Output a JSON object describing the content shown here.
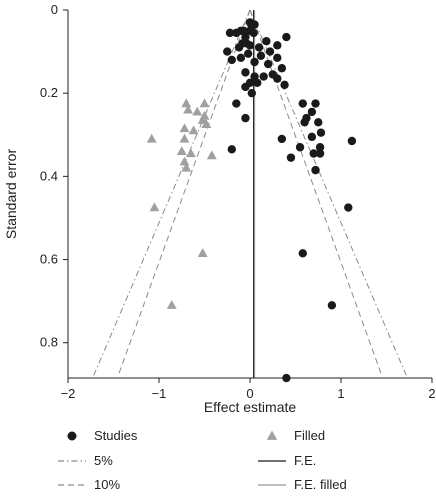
{
  "chart_data": {
    "type": "scatter",
    "subtype": "funnel-plot",
    "xlabel": "Effect estimate",
    "ylabel": "Standard error",
    "xlim": [
      -2,
      2
    ],
    "ylim": [
      0,
      0.88
    ],
    "y_reversed": true,
    "x_ticks": [
      "−2",
      "−1",
      "0",
      "1",
      "2"
    ],
    "y_ticks": [
      "0",
      "0.2",
      "0.4",
      "0.6",
      "0.8"
    ],
    "grid": false,
    "legend_position": "bottom",
    "fixed_effect_estimate": 0.04,
    "fixed_effect_filled_estimate": 0.05,
    "series": [
      {
        "name": "Studies",
        "marker": "circle",
        "color": "#1a1a1a",
        "points": [
          [
            0.0,
            0.03
          ],
          [
            0.05,
            0.035
          ],
          [
            0.02,
            0.04
          ],
          [
            0.0,
            0.05
          ],
          [
            -0.07,
            0.05
          ],
          [
            0.04,
            0.055
          ],
          [
            -0.1,
            0.05
          ],
          [
            -0.15,
            0.055
          ],
          [
            -0.22,
            0.055
          ],
          [
            -0.05,
            0.065
          ],
          [
            0.4,
            0.065
          ],
          [
            0.18,
            0.075
          ],
          [
            -0.08,
            0.08
          ],
          [
            -0.04,
            0.08
          ],
          [
            0.0,
            0.085
          ],
          [
            0.3,
            0.085
          ],
          [
            -0.12,
            0.09
          ],
          [
            0.1,
            0.09
          ],
          [
            -0.25,
            0.1
          ],
          [
            0.22,
            0.1
          ],
          [
            -0.02,
            0.105
          ],
          [
            0.12,
            0.11
          ],
          [
            -0.1,
            0.115
          ],
          [
            0.3,
            0.115
          ],
          [
            -0.2,
            0.12
          ],
          [
            0.05,
            0.125
          ],
          [
            0.2,
            0.13
          ],
          [
            0.35,
            0.14
          ],
          [
            -0.05,
            0.15
          ],
          [
            0.25,
            0.155
          ],
          [
            0.05,
            0.16
          ],
          [
            0.15,
            0.16
          ],
          [
            0.3,
            0.165
          ],
          [
            0.0,
            0.175
          ],
          [
            0.08,
            0.175
          ],
          [
            0.38,
            0.18
          ],
          [
            -0.05,
            0.185
          ],
          [
            0.02,
            0.2
          ],
          [
            -0.15,
            0.225
          ],
          [
            0.58,
            0.225
          ],
          [
            0.72,
            0.225
          ],
          [
            0.68,
            0.245
          ],
          [
            0.62,
            0.26
          ],
          [
            0.6,
            0.27
          ],
          [
            0.75,
            0.27
          ],
          [
            -0.05,
            0.26
          ],
          [
            0.78,
            0.295
          ],
          [
            0.68,
            0.305
          ],
          [
            0.35,
            0.31
          ],
          [
            1.12,
            0.315
          ],
          [
            0.55,
            0.33
          ],
          [
            0.77,
            0.33
          ],
          [
            -0.2,
            0.335
          ],
          [
            0.7,
            0.345
          ],
          [
            0.77,
            0.345
          ],
          [
            0.45,
            0.355
          ],
          [
            0.72,
            0.385
          ],
          [
            1.08,
            0.475
          ],
          [
            0.58,
            0.585
          ],
          [
            0.9,
            0.71
          ],
          [
            0.4,
            0.885
          ]
        ]
      },
      {
        "name": "Filled",
        "marker": "triangle",
        "color": "#a0a0a0",
        "points": [
          [
            -0.7,
            0.225
          ],
          [
            -0.5,
            0.225
          ],
          [
            -0.68,
            0.24
          ],
          [
            -0.58,
            0.245
          ],
          [
            -0.5,
            0.255
          ],
          [
            -0.52,
            0.265
          ],
          [
            -0.48,
            0.275
          ],
          [
            -0.72,
            0.285
          ],
          [
            -0.62,
            0.29
          ],
          [
            -1.08,
            0.31
          ],
          [
            -0.72,
            0.31
          ],
          [
            -0.75,
            0.34
          ],
          [
            -0.65,
            0.345
          ],
          [
            -0.42,
            0.35
          ],
          [
            -0.72,
            0.365
          ],
          [
            -0.7,
            0.38
          ],
          [
            -1.05,
            0.475
          ],
          [
            -0.52,
            0.585
          ],
          [
            -0.86,
            0.71
          ]
        ]
      }
    ],
    "reference_lines": [
      {
        "name": "5%",
        "style": "dash-dot",
        "color": "#8a8a8a",
        "center": 0.0,
        "x_at_bottom": [
          -1.72,
          1.72
        ],
        "y_bottom": 0.88
      },
      {
        "name": "10%",
        "style": "dashed",
        "color": "#8a8a8a",
        "center": 0.0,
        "x_at_bottom": [
          -1.45,
          1.45
        ],
        "y_bottom": 0.88
      },
      {
        "name": "F.E.",
        "style": "solid",
        "color": "#1a1a1a",
        "x": 0.04
      },
      {
        "name": "F.E. filled",
        "style": "solid",
        "color": "#9a9a9a",
        "x": 0.05
      }
    ],
    "legend": [
      {
        "label": "Studies",
        "symbol": "circle",
        "color": "#1a1a1a"
      },
      {
        "label": "Filled",
        "symbol": "triangle",
        "color": "#a0a0a0"
      },
      {
        "label": "5%",
        "symbol": "dash-dot",
        "color": "#8a8a8a"
      },
      {
        "label": "F.E.",
        "symbol": "solid",
        "color": "#1a1a1a"
      },
      {
        "label": "10%",
        "symbol": "dashed",
        "color": "#8a8a8a"
      },
      {
        "label": "F.E. filled",
        "symbol": "solid",
        "color": "#9a9a9a"
      }
    ]
  }
}
